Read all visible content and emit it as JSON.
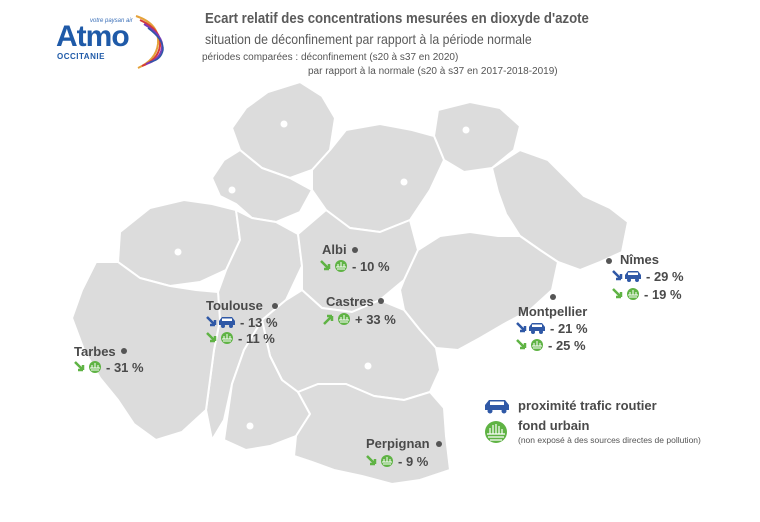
{
  "header": {
    "title": "Ecart relatif des concentrations mesurées en dioxyde d'azote",
    "subtitle": "situation de déconfinement par rapport à la période normale",
    "note_line1": "périodes comparées : déconfinement (s20 à s37 en 2020)",
    "note_line2": "par rapport à la normale (s20 à s37 en 2017-2018-2019)"
  },
  "logo": {
    "tagline": "votre paysan air",
    "main": "Atmo",
    "sub": "OCCITANIE"
  },
  "colors": {
    "map_fill": "#dcdcdc",
    "map_border": "#ffffff",
    "traffic_arrow": "#2f58a6",
    "traffic_car": "#2f58a6",
    "urban_arrow": "#5fb344",
    "urban_bg": "#5fb344",
    "text": "#4a4a4a"
  },
  "cities": {
    "albi": {
      "name": "Albi",
      "urban": "- 10 %"
    },
    "toulouse": {
      "name": "Toulouse",
      "traffic": "- 13 %",
      "urban": "- 11 %"
    },
    "castres": {
      "name": "Castres",
      "urban": "+ 33 %"
    },
    "tarbes": {
      "name": "Tarbes",
      "urban": "- 31 %"
    },
    "nimes": {
      "name": "Nîmes",
      "traffic": "- 29 %",
      "urban": "- 19 %"
    },
    "montpellier": {
      "name": "Montpellier",
      "traffic": "- 21 %",
      "urban": "- 25 %"
    },
    "perpignan": {
      "name": "Perpignan",
      "urban": "- 9 %"
    }
  },
  "legend": {
    "traffic_label": "proximité trafic routier",
    "urban_label": "fond urbain",
    "urban_note": "(non exposé à des sources directes de pollution)"
  }
}
